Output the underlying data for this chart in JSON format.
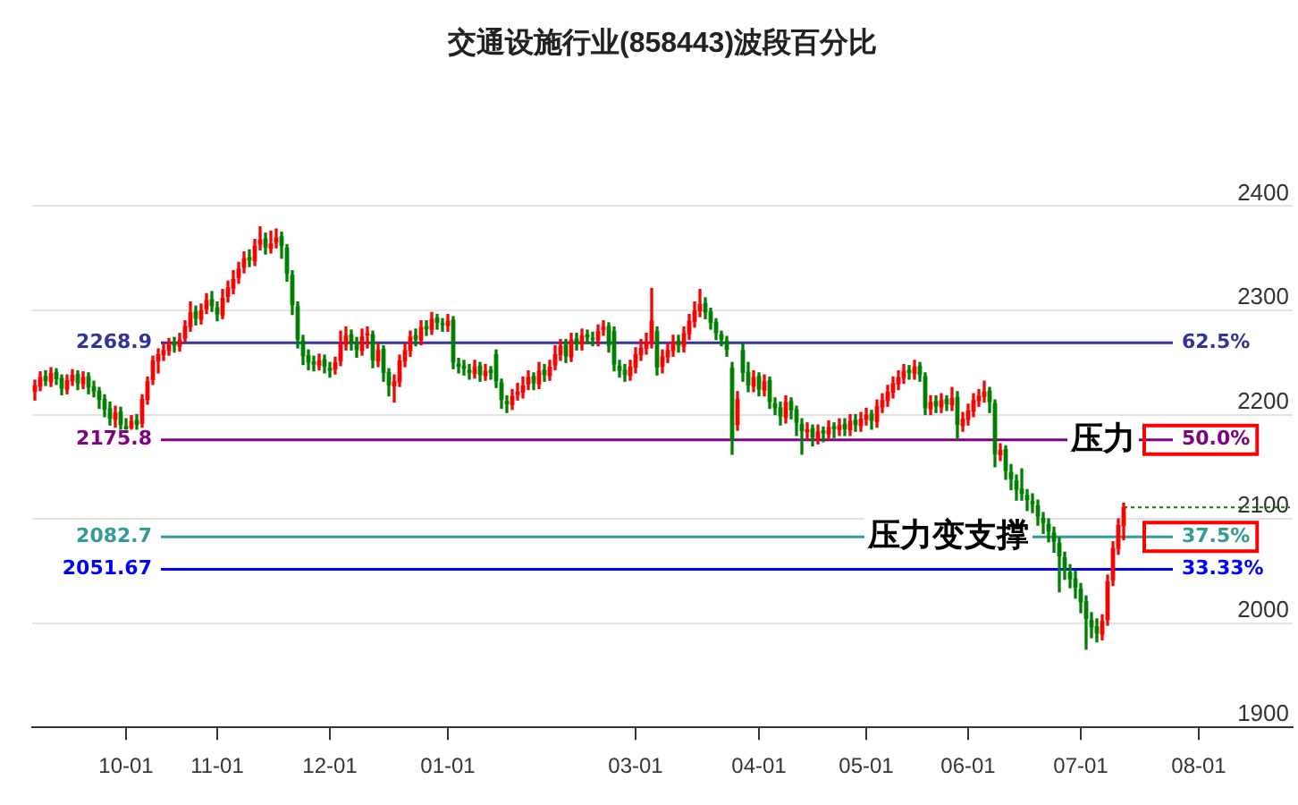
{
  "chart_data": {
    "type": "candlestick",
    "title": "交通设施行业(858443)波段百分比",
    "categories": [
      null,
      null,
      null,
      null,
      null,
      null,
      null,
      null,
      null,
      null,
      null,
      null,
      null,
      null,
      null,
      null,
      null,
      "10-01",
      null,
      null,
      null,
      null,
      null,
      null,
      null,
      null,
      null,
      null,
      null,
      null,
      null,
      null,
      null,
      null,
      "11-01",
      null,
      null,
      null,
      null,
      null,
      null,
      null,
      null,
      null,
      null,
      null,
      null,
      null,
      null,
      null,
      null,
      null,
      null,
      null,
      null,
      "12-01",
      null,
      null,
      null,
      null,
      null,
      null,
      null,
      null,
      null,
      null,
      null,
      null,
      null,
      null,
      null,
      null,
      null,
      null,
      null,
      null,
      null,
      "01-01",
      null,
      null,
      null,
      null,
      null,
      null,
      null,
      null,
      null,
      null,
      null,
      null,
      null,
      null,
      null,
      null,
      null,
      null,
      null,
      null,
      null,
      null,
      null,
      null,
      null,
      null,
      null,
      null,
      null,
      null,
      null,
      null,
      null,
      null,
      "03-01",
      null,
      null,
      null,
      null,
      null,
      null,
      null,
      null,
      null,
      null,
      null,
      null,
      null,
      null,
      null,
      null,
      null,
      null,
      null,
      null,
      null,
      null,
      "04-01",
      null,
      null,
      null,
      null,
      null,
      null,
      null,
      null,
      null,
      null,
      null,
      null,
      null,
      null,
      null,
      null,
      null,
      null,
      null,
      "05-01",
      null,
      null,
      null,
      null,
      null,
      null,
      null,
      null,
      null,
      null,
      null,
      null,
      null,
      null,
      null,
      null,
      null,
      null,
      "06-01",
      null,
      null,
      null,
      null,
      null,
      null,
      null,
      null,
      null,
      null,
      null,
      null,
      null,
      null,
      null,
      null,
      null,
      null,
      null,
      null,
      "07-01",
      null,
      null,
      null,
      null,
      null,
      null,
      null,
      null,
      null,
      null,
      null,
      null,
      null,
      null,
      null,
      null,
      null,
      null,
      null,
      null,
      null,
      "08-01",
      null,
      null,
      null,
      null,
      null,
      null,
      null,
      null,
      null,
      null,
      null,
      null,
      null,
      null,
      null,
      null,
      null
    ],
    "ohlc": [
      [
        2222,
        2233,
        2214,
        2228
      ],
      [
        2227,
        2241,
        2223,
        2236
      ],
      [
        2237,
        2242,
        2228,
        2232
      ],
      [
        2231,
        2245,
        2227,
        2240
      ],
      [
        2241,
        2244,
        2229,
        2234
      ],
      [
        2235,
        2238,
        2219,
        2225
      ],
      [
        2224,
        2238,
        2220,
        2233
      ],
      [
        2232,
        2243,
        2228,
        2238
      ],
      [
        2239,
        2242,
        2224,
        2230
      ],
      [
        2229,
        2241,
        2225,
        2236
      ],
      [
        2237,
        2240,
        2220,
        2226
      ],
      [
        2227,
        2232,
        2217,
        2222
      ],
      [
        2223,
        2226,
        2206,
        2214
      ],
      [
        2215,
        2219,
        2198,
        2205
      ],
      [
        2206,
        2212,
        2190,
        2196
      ],
      [
        2195,
        2208,
        2188,
        2202
      ],
      [
        2203,
        2207,
        2186,
        2190
      ],
      [
        2189,
        2196,
        2186,
        2186
      ],
      [
        2187,
        2199,
        2186,
        2194
      ],
      [
        2195,
        2200,
        2186,
        2190
      ],
      [
        2191,
        2219,
        2188,
        2215
      ],
      [
        2214,
        2236,
        2210,
        2232
      ],
      [
        2233,
        2256,
        2229,
        2252
      ],
      [
        2251,
        2263,
        2240,
        2258
      ],
      [
        2257,
        2268,
        2252,
        2262
      ],
      [
        2261,
        2273,
        2257,
        2268
      ],
      [
        2269,
        2274,
        2260,
        2266
      ],
      [
        2265,
        2278,
        2261,
        2272
      ],
      [
        2273,
        2290,
        2270,
        2285
      ],
      [
        2284,
        2308,
        2280,
        2298
      ],
      [
        2299,
        2304,
        2286,
        2292
      ],
      [
        2291,
        2306,
        2287,
        2300
      ],
      [
        2301,
        2316,
        2297,
        2310
      ],
      [
        2311,
        2318,
        2299,
        2304
      ],
      [
        2303,
        2308,
        2290,
        2296
      ],
      [
        2295,
        2320,
        2292,
        2312
      ],
      [
        2313,
        2328,
        2308,
        2322
      ],
      [
        2321,
        2338,
        2316,
        2330
      ],
      [
        2331,
        2346,
        2326,
        2340
      ],
      [
        2341,
        2356,
        2336,
        2350
      ],
      [
        2351,
        2358,
        2342,
        2348
      ],
      [
        2347,
        2368,
        2343,
        2362
      ],
      [
        2363,
        2380,
        2358,
        2368
      ],
      [
        2369,
        2374,
        2354,
        2360
      ],
      [
        2359,
        2376,
        2355,
        2364
      ],
      [
        2365,
        2378,
        2360,
        2370
      ],
      [
        2371,
        2375,
        2350,
        2362
      ],
      [
        2360,
        2363,
        2328,
        2335
      ],
      [
        2334,
        2338,
        2296,
        2305
      ],
      [
        2304,
        2308,
        2264,
        2272
      ],
      [
        2271,
        2276,
        2248,
        2256
      ],
      [
        2257,
        2262,
        2243,
        2250
      ],
      [
        2251,
        2256,
        2242,
        2248
      ],
      [
        2247,
        2258,
        2243,
        2252
      ],
      [
        2253,
        2257,
        2240,
        2246
      ],
      [
        2245,
        2250,
        2236,
        2242
      ],
      [
        2243,
        2255,
        2239,
        2250
      ],
      [
        2251,
        2280,
        2247,
        2268
      ],
      [
        2267,
        2284,
        2262,
        2276
      ],
      [
        2277,
        2281,
        2262,
        2270
      ],
      [
        2269,
        2274,
        2255,
        2262
      ],
      [
        2261,
        2282,
        2257,
        2275
      ],
      [
        2276,
        2284,
        2264,
        2278
      ],
      [
        2277,
        2280,
        2245,
        2252
      ],
      [
        2251,
        2268,
        2246,
        2262
      ],
      [
        2263,
        2266,
        2232,
        2240
      ],
      [
        2241,
        2244,
        2218,
        2228
      ],
      [
        2227,
        2238,
        2212,
        2232
      ],
      [
        2231,
        2257,
        2227,
        2252
      ],
      [
        2251,
        2268,
        2246,
        2262
      ],
      [
        2261,
        2280,
        2256,
        2275
      ],
      [
        2276,
        2282,
        2266,
        2272
      ],
      [
        2271,
        2290,
        2267,
        2284
      ],
      [
        2285,
        2290,
        2276,
        2282
      ],
      [
        2281,
        2298,
        2277,
        2292
      ],
      [
        2293,
        2296,
        2282,
        2288
      ],
      [
        2287,
        2292,
        2280,
        2286
      ],
      [
        2285,
        2296,
        2280,
        2290
      ],
      [
        2291,
        2294,
        2244,
        2250
      ],
      [
        2249,
        2254,
        2240,
        2246
      ],
      [
        2247,
        2252,
        2238,
        2244
      ],
      [
        2243,
        2248,
        2234,
        2240
      ],
      [
        2239,
        2252,
        2235,
        2246
      ],
      [
        2247,
        2250,
        2232,
        2238
      ],
      [
        2237,
        2248,
        2233,
        2242
      ],
      [
        2243,
        2246,
        2234,
        2240
      ],
      [
        2258,
        2262,
        2226,
        2232
      ],
      [
        2231,
        2234,
        2206,
        2214
      ],
      [
        2213,
        2218,
        2202,
        2210
      ],
      [
        2209,
        2224,
        2205,
        2218
      ],
      [
        2219,
        2230,
        2214,
        2222
      ],
      [
        2221,
        2236,
        2216,
        2228
      ],
      [
        2229,
        2242,
        2224,
        2236
      ],
      [
        2237,
        2240,
        2224,
        2230
      ],
      [
        2229,
        2250,
        2225,
        2242
      ],
      [
        2243,
        2248,
        2232,
        2238
      ],
      [
        2237,
        2252,
        2233,
        2246
      ],
      [
        2247,
        2266,
        2243,
        2258
      ],
      [
        2257,
        2272,
        2252,
        2266
      ],
      [
        2267,
        2272,
        2250,
        2256
      ],
      [
        2255,
        2278,
        2251,
        2272
      ],
      [
        2273,
        2278,
        2262,
        2268
      ],
      [
        2267,
        2282,
        2262,
        2276
      ],
      [
        2277,
        2281,
        2268,
        2274
      ],
      [
        2273,
        2279,
        2266,
        2272
      ],
      [
        2271,
        2286,
        2266,
        2280
      ],
      [
        2281,
        2290,
        2276,
        2284
      ],
      [
        2285,
        2288,
        2260,
        2266
      ],
      [
        2280,
        2284,
        2242,
        2248
      ],
      [
        2247,
        2252,
        2236,
        2242
      ],
      [
        2243,
        2248,
        2232,
        2238
      ],
      [
        2237,
        2252,
        2233,
        2246
      ],
      [
        2245,
        2264,
        2240,
        2258
      ],
      [
        2257,
        2272,
        2252,
        2264
      ],
      [
        2263,
        2278,
        2258,
        2270
      ],
      [
        2269,
        2321,
        2264,
        2290
      ],
      [
        2280,
        2284,
        2238,
        2245
      ],
      [
        2246,
        2262,
        2240,
        2256
      ],
      [
        2255,
        2268,
        2250,
        2262
      ],
      [
        2261,
        2276,
        2256,
        2270
      ],
      [
        2271,
        2276,
        2260,
        2266
      ],
      [
        2265,
        2284,
        2260,
        2278
      ],
      [
        2277,
        2296,
        2272,
        2290
      ],
      [
        2289,
        2308,
        2284,
        2300
      ],
      [
        2299,
        2320,
        2294,
        2306
      ],
      [
        2307,
        2312,
        2292,
        2298
      ],
      [
        2299,
        2302,
        2282,
        2288
      ],
      [
        2289,
        2292,
        2272,
        2278
      ],
      [
        2277,
        2280,
        2266,
        2272
      ],
      [
        2271,
        2275,
        2256,
        2262
      ],
      [
        2245,
        2250,
        2162,
        2175
      ],
      [
        2190,
        2222,
        2185,
        2215
      ],
      [
        2262,
        2268,
        2232,
        2240
      ],
      [
        2241,
        2250,
        2222,
        2228
      ],
      [
        2227,
        2242,
        2222,
        2236
      ],
      [
        2237,
        2240,
        2218,
        2224
      ],
      [
        2223,
        2238,
        2218,
        2232
      ],
      [
        2233,
        2236,
        2206,
        2212
      ],
      [
        2211,
        2216,
        2200,
        2206
      ],
      [
        2207,
        2212,
        2190,
        2198
      ],
      [
        2197,
        2218,
        2192,
        2212
      ],
      [
        2213,
        2216,
        2196,
        2204
      ],
      [
        2205,
        2208,
        2180,
        2192
      ],
      [
        2191,
        2196,
        2162,
        2184
      ],
      [
        2183,
        2192,
        2176,
        2186
      ],
      [
        2187,
        2190,
        2170,
        2178
      ],
      [
        2177,
        2190,
        2172,
        2184
      ],
      [
        2185,
        2188,
        2174,
        2182
      ],
      [
        2181,
        2194,
        2176,
        2188
      ],
      [
        2189,
        2192,
        2178,
        2186
      ],
      [
        2185,
        2196,
        2180,
        2190
      ],
      [
        2191,
        2196,
        2180,
        2186
      ],
      [
        2185,
        2200,
        2180,
        2194
      ],
      [
        2195,
        2200,
        2184,
        2190
      ],
      [
        2189,
        2202,
        2184,
        2196
      ],
      [
        2195,
        2206,
        2190,
        2200
      ],
      [
        2201,
        2204,
        2186,
        2194
      ],
      [
        2193,
        2214,
        2188,
        2208
      ],
      [
        2207,
        2220,
        2202,
        2214
      ],
      [
        2213,
        2228,
        2208,
        2222
      ],
      [
        2221,
        2236,
        2216,
        2230
      ],
      [
        2229,
        2242,
        2224,
        2236
      ],
      [
        2235,
        2248,
        2230,
        2242
      ],
      [
        2243,
        2247,
        2234,
        2240
      ],
      [
        2239,
        2252,
        2234,
        2246
      ],
      [
        2247,
        2250,
        2232,
        2238
      ],
      [
        2237,
        2240,
        2200,
        2206
      ],
      [
        2205,
        2218,
        2200,
        2212
      ],
      [
        2213,
        2218,
        2202,
        2208
      ],
      [
        2207,
        2220,
        2202,
        2214
      ],
      [
        2215,
        2218,
        2204,
        2210
      ],
      [
        2209,
        2226,
        2204,
        2216
      ],
      [
        2217,
        2222,
        2176,
        2190
      ],
      [
        2189,
        2202,
        2184,
        2196
      ],
      [
        2195,
        2210,
        2190,
        2204
      ],
      [
        2203,
        2220,
        2198,
        2214
      ],
      [
        2213,
        2224,
        2208,
        2218
      ],
      [
        2217,
        2232,
        2212,
        2222
      ],
      [
        2223,
        2226,
        2202,
        2212
      ],
      [
        2211,
        2214,
        2150,
        2162
      ],
      [
        2161,
        2172,
        2156,
        2166
      ],
      [
        2167,
        2170,
        2138,
        2146
      ],
      [
        2145,
        2152,
        2128,
        2138
      ],
      [
        2137,
        2142,
        2118,
        2128
      ],
      [
        2129,
        2148,
        2118,
        2124
      ],
      [
        2123,
        2128,
        2108,
        2118
      ],
      [
        2117,
        2124,
        2106,
        2114
      ],
      [
        2113,
        2118,
        2094,
        2102
      ],
      [
        2101,
        2106,
        2086,
        2096
      ],
      [
        2095,
        2100,
        2078,
        2088
      ],
      [
        2087,
        2092,
        2068,
        2078
      ],
      [
        2077,
        2082,
        2030,
        2064
      ],
      [
        2063,
        2068,
        2042,
        2050
      ],
      [
        2049,
        2056,
        2034,
        2042
      ],
      [
        2043,
        2050,
        2024,
        2034
      ],
      [
        2033,
        2038,
        2010,
        2020
      ],
      [
        2021,
        2026,
        1975,
        2004
      ],
      [
        2003,
        2010,
        1986,
        1996
      ],
      [
        1997,
        2004,
        1982,
        1990
      ],
      [
        1989,
        2008,
        1984,
        2002
      ],
      [
        2003,
        2046,
        1998,
        2040
      ],
      [
        2041,
        2078,
        2036,
        2072
      ],
      [
        2071,
        2100,
        2066,
        2094
      ],
      [
        2093,
        2115,
        2080,
        2111
      ],
      null,
      null,
      null,
      null,
      null,
      null,
      null,
      null,
      null,
      null,
      null,
      null,
      null,
      null,
      null,
      null,
      null,
      null,
      null,
      null,
      null,
      null,
      null,
      null,
      null,
      null,
      null,
      null,
      null,
      null,
      null
    ],
    "colors": [
      "#ff0000",
      "#ff0000",
      "#008000",
      "#ff0000",
      "#008000",
      "#008000",
      "#ff0000",
      "#ff0000",
      "#008000",
      "#ff0000",
      "#008000",
      "#008000",
      "#008000",
      "#008000",
      "#008000",
      "#ff0000",
      "#008000",
      "#008000",
      "#ff0000",
      "#008000",
      "#ff0000",
      "#ff0000",
      "#ff0000",
      "#ff0000",
      "#ff0000",
      "#ff0000",
      "#008000",
      "#ff0000",
      "#ff0000",
      "#ff0000",
      "#008000",
      "#ff0000",
      "#ff0000",
      "#008000",
      "#008000",
      "#ff0000",
      "#ff0000",
      "#ff0000",
      "#ff0000",
      "#ff0000",
      "#008000",
      "#ff0000",
      "#ff0000",
      "#008000",
      "#ff0000",
      "#ff0000",
      "#008000",
      "#008000",
      "#008000",
      "#008000",
      "#008000",
      "#008000",
      "#008000",
      "#ff0000",
      "#008000",
      "#008000",
      "#ff0000",
      "#ff0000",
      "#ff0000",
      "#008000",
      "#008000",
      "#ff0000",
      "#ff0000",
      "#008000",
      "#ff0000",
      "#008000",
      "#008000",
      "#ff0000",
      "#ff0000",
      "#ff0000",
      "#ff0000",
      "#008000",
      "#ff0000",
      "#008000",
      "#ff0000",
      "#008000",
      "#008000",
      "#ff0000",
      "#008000",
      "#008000",
      "#008000",
      "#008000",
      "#ff0000",
      "#008000",
      "#ff0000",
      "#008000",
      "#008000",
      "#008000",
      "#008000",
      "#ff0000",
      "#ff0000",
      "#ff0000",
      "#ff0000",
      "#008000",
      "#ff0000",
      "#008000",
      "#ff0000",
      "#ff0000",
      "#ff0000",
      "#008000",
      "#ff0000",
      "#008000",
      "#ff0000",
      "#008000",
      "#008000",
      "#ff0000",
      "#ff0000",
      "#008000",
      "#008000",
      "#008000",
      "#008000",
      "#ff0000",
      "#ff0000",
      "#ff0000",
      "#ff0000",
      "#ff0000",
      "#008000",
      "#ff0000",
      "#ff0000",
      "#ff0000",
      "#008000",
      "#ff0000",
      "#ff0000",
      "#ff0000",
      "#ff0000",
      "#008000",
      "#008000",
      "#008000",
      "#008000",
      "#008000",
      "#008000",
      "#ff0000",
      "#008000",
      "#008000",
      "#ff0000",
      "#008000",
      "#ff0000",
      "#008000",
      "#008000",
      "#008000",
      "#ff0000",
      "#008000",
      "#008000",
      "#008000",
      "#ff0000",
      "#008000",
      "#ff0000",
      "#008000",
      "#ff0000",
      "#008000",
      "#ff0000",
      "#008000",
      "#ff0000",
      "#008000",
      "#ff0000",
      "#ff0000",
      "#008000",
      "#ff0000",
      "#ff0000",
      "#ff0000",
      "#ff0000",
      "#ff0000",
      "#ff0000",
      "#008000",
      "#ff0000",
      "#008000",
      "#008000",
      "#ff0000",
      "#008000",
      "#ff0000",
      "#008000",
      "#ff0000",
      "#008000",
      "#ff0000",
      "#ff0000",
      "#ff0000",
      "#ff0000",
      "#ff0000",
      "#008000",
      "#008000",
      "#ff0000",
      "#008000",
      "#008000",
      "#008000",
      "#008000",
      "#008000",
      "#008000",
      "#008000",
      "#008000",
      "#008000",
      "#008000",
      "#008000",
      "#008000",
      "#008000",
      "#008000",
      "#008000",
      "#008000",
      "#008000",
      "#008000",
      "#ff0000",
      "#ff0000",
      "#ff0000",
      "#ff0000",
      "#ff0000",
      null,
      null,
      null,
      null,
      null,
      null,
      null,
      null,
      null,
      null,
      null,
      null,
      null,
      null,
      null,
      null,
      null,
      null,
      null,
      null,
      null,
      null,
      null,
      null,
      null,
      null,
      null,
      null,
      null,
      null,
      null
    ],
    "series": [
      {
        "type": "line",
        "color": "#008000",
        "line_style": "dotted",
        "values": [
          null,
          null,
          null,
          null,
          null,
          null,
          null,
          null,
          null,
          null,
          null,
          null,
          null,
          null,
          null,
          null,
          null,
          null,
          null,
          null,
          null,
          null,
          null,
          null,
          null,
          null,
          null,
          null,
          null,
          null,
          null,
          null,
          null,
          null,
          null,
          null,
          null,
          null,
          null,
          null,
          null,
          null,
          null,
          null,
          null,
          null,
          null,
          null,
          null,
          null,
          null,
          null,
          null,
          null,
          null,
          null,
          null,
          null,
          null,
          null,
          null,
          null,
          null,
          null,
          null,
          null,
          null,
          null,
          null,
          null,
          null,
          null,
          null,
          null,
          null,
          null,
          null,
          null,
          null,
          null,
          null,
          null,
          null,
          null,
          null,
          null,
          null,
          null,
          null,
          null,
          null,
          null,
          null,
          null,
          null,
          null,
          null,
          null,
          null,
          null,
          null,
          null,
          null,
          null,
          null,
          null,
          null,
          null,
          null,
          null,
          null,
          null,
          null,
          null,
          null,
          null,
          null,
          null,
          null,
          null,
          null,
          null,
          null,
          null,
          null,
          null,
          null,
          null,
          null,
          null,
          null,
          null,
          null,
          null,
          null,
          null,
          null,
          null,
          null,
          null,
          null,
          null,
          null,
          null,
          null,
          null,
          null,
          null,
          null,
          null,
          null,
          null,
          null,
          null,
          null,
          null,
          null,
          null,
          null,
          null,
          null,
          null,
          null,
          null,
          null,
          null,
          null,
          null,
          null,
          null,
          null,
          null,
          null,
          null,
          null,
          null,
          null,
          null,
          null,
          null,
          null,
          null,
          null,
          null,
          null,
          null,
          null,
          null,
          null,
          null,
          null,
          null,
          null,
          null,
          null,
          null,
          null,
          null,
          null,
          null,
          null,
          null,
          null,
          2111,
          2111,
          2111,
          2111,
          2111,
          2111,
          2111,
          2111,
          2111,
          2111,
          2111,
          2111,
          2111,
          2111,
          2111,
          2111,
          2111,
          2111,
          2111,
          2111,
          2111,
          2111,
          2111,
          2111,
          2111,
          2111,
          2111,
          2111,
          2111,
          2111,
          2111,
          2111
        ]
      }
    ],
    "ylim": [
      1900,
      2400
    ],
    "yticks": [
      1900,
      2000,
      2100,
      2200,
      2300,
      2400
    ],
    "grid": "y",
    "legend": false,
    "ref_lines": [
      {
        "axis": "y",
        "value": 2268.9,
        "label": "2268.9",
        "color": "#333399"
      },
      {
        "axis": "y",
        "value": 2175.8,
        "label": "2175.8",
        "color": "#800080"
      },
      {
        "axis": "y",
        "value": 2082.7,
        "label": "2082.7",
        "color": "#339999"
      },
      {
        "axis": "y",
        "value": 2051.67,
        "label": "2051.67",
        "color": "#0000ff"
      }
    ],
    "annotations": [
      "62.5%",
      "50.0%",
      "37.5%",
      "33.33%",
      {
        "text": "压力",
        "y": 2175.8
      },
      {
        "text": "压力变支撑",
        "y": 2082.7
      }
    ]
  }
}
